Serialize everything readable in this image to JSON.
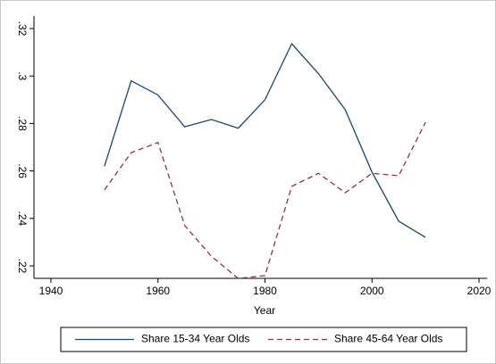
{
  "chart_data": {
    "type": "line",
    "x": [
      1950,
      1955,
      1960,
      1965,
      1970,
      1975,
      1980,
      1985,
      1990,
      1995,
      2000,
      2005,
      2010
    ],
    "x_label": "Year",
    "series": [
      {
        "name": "Share 15-34 Year Olds",
        "color": "#1a476f",
        "dash": "solid",
        "values": [
          0.262,
          0.298,
          0.292,
          0.2786,
          0.2817,
          0.278,
          0.29,
          0.3136,
          0.301,
          0.2858,
          0.2595,
          0.2388,
          0.232
        ]
      },
      {
        "name": "Share 45-64 Year Olds",
        "color": "#90353b",
        "dash": "dashed",
        "values": [
          0.252,
          0.2677,
          0.272,
          0.237,
          0.224,
          0.2147,
          0.2159,
          0.2535,
          0.259,
          0.2508,
          0.259,
          0.258,
          0.2805
        ]
      }
    ],
    "xlim": [
      1940,
      2020
    ],
    "xticks": [
      1940,
      1960,
      1980,
      2000,
      2020
    ],
    "ylim": [
      0.22,
      0.32
    ],
    "yticks": [
      {
        "value": 0.22,
        "label": ".22"
      },
      {
        "value": 0.24,
        "label": ".24"
      },
      {
        "value": 0.26,
        "label": ".26"
      },
      {
        "value": 0.28,
        "label": ".28"
      },
      {
        "value": 0.3,
        "label": ".3"
      },
      {
        "value": 0.32,
        "label": ".32"
      }
    ],
    "grid": false,
    "legend": "bottom"
  }
}
